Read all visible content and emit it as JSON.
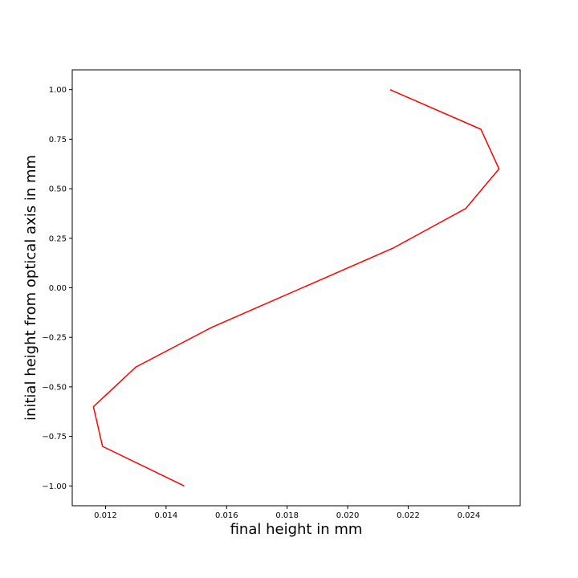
{
  "chart_data": {
    "type": "line",
    "title": "",
    "xlabel": "final height in mm",
    "ylabel": "initial height from optical axis in mm",
    "xlim": [
      0.0109,
      0.0257
    ],
    "ylim": [
      -1.1,
      1.1
    ],
    "x_ticks": [
      0.012,
      0.014,
      0.016,
      0.018,
      0.02,
      0.022,
      0.024
    ],
    "x_tick_labels": [
      "0.012",
      "0.014",
      "0.016",
      "0.018",
      "0.020",
      "0.022",
      "0.024"
    ],
    "y_ticks": [
      -1.0,
      -0.75,
      -0.5,
      -0.25,
      0.0,
      0.25,
      0.5,
      0.75,
      1.0
    ],
    "y_tick_labels": [
      "−1.00",
      "−0.75",
      "−0.50",
      "−0.25",
      "0.00",
      "0.25",
      "0.50",
      "0.75",
      "1.00"
    ],
    "grid": false,
    "legend": "none",
    "series": [
      {
        "color": "#ff0000",
        "x": [
          0.0146,
          0.0119,
          0.0116,
          0.013,
          0.0155,
          0.0185,
          0.0215,
          0.0239,
          0.025,
          0.0244,
          0.0214
        ],
        "y": [
          -1.0,
          -0.8,
          -0.6,
          -0.4,
          -0.2,
          0.0,
          0.2,
          0.4,
          0.6,
          0.8,
          1.0
        ]
      }
    ]
  }
}
